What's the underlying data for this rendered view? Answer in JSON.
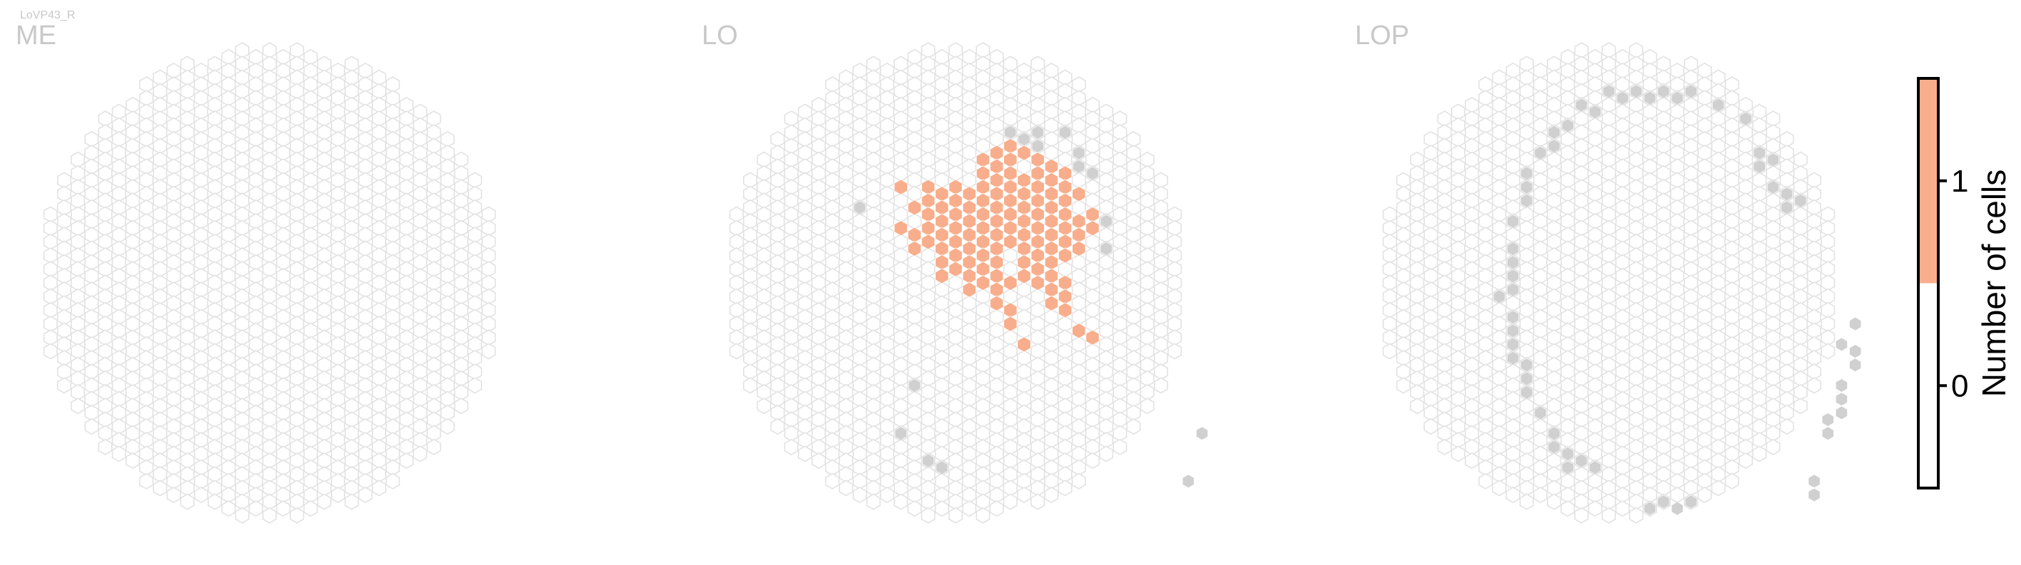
{
  "chart_data": {
    "type": "heatmap",
    "cell_type": "LoVP43_R",
    "panels": [
      {
        "title": "ME",
        "filled": [],
        "outside": []
      },
      {
        "title": "LO",
        "filled": [
          [
            3,
            -10
          ],
          [
            4,
            -10
          ],
          [
            5,
            -10
          ],
          [
            2,
            -9
          ],
          [
            3,
            -9
          ],
          [
            4,
            -9
          ],
          [
            6,
            -9
          ],
          [
            7,
            -9
          ],
          [
            2,
            -8
          ],
          [
            3,
            -8
          ],
          [
            4,
            -8
          ],
          [
            5,
            -8
          ],
          [
            6,
            -8
          ],
          [
            7,
            -8
          ],
          [
            8,
            -8
          ],
          [
            -4,
            -7
          ],
          [
            -2,
            -7
          ],
          [
            -1,
            -7
          ],
          [
            0,
            -7
          ],
          [
            1,
            -7
          ],
          [
            2,
            -7
          ],
          [
            3,
            -7
          ],
          [
            4,
            -7
          ],
          [
            5,
            -7
          ],
          [
            6,
            -7
          ],
          [
            7,
            -7
          ],
          [
            8,
            -7
          ],
          [
            9,
            -7
          ],
          [
            -3,
            -6
          ],
          [
            -2,
            -6
          ],
          [
            -1,
            -6
          ],
          [
            0,
            -6
          ],
          [
            1,
            -6
          ],
          [
            2,
            -6
          ],
          [
            3,
            -6
          ],
          [
            4,
            -6
          ],
          [
            5,
            -6
          ],
          [
            6,
            -6
          ],
          [
            7,
            -6
          ],
          [
            8,
            -6
          ],
          [
            -2,
            -5
          ],
          [
            -1,
            -5
          ],
          [
            0,
            -5
          ],
          [
            1,
            -5
          ],
          [
            2,
            -5
          ],
          [
            3,
            -5
          ],
          [
            4,
            -5
          ],
          [
            5,
            -5
          ],
          [
            6,
            -5
          ],
          [
            7,
            -5
          ],
          [
            8,
            -5
          ],
          [
            9,
            -5
          ],
          [
            10,
            -5
          ],
          [
            -4,
            -4
          ],
          [
            -3,
            -4
          ],
          [
            -2,
            -4
          ],
          [
            -1,
            -4
          ],
          [
            0,
            -4
          ],
          [
            1,
            -4
          ],
          [
            2,
            -4
          ],
          [
            3,
            -4
          ],
          [
            4,
            -4
          ],
          [
            5,
            -4
          ],
          [
            6,
            -4
          ],
          [
            7,
            -4
          ],
          [
            8,
            -4
          ],
          [
            9,
            -4
          ],
          [
            10,
            -4
          ],
          [
            -3,
            -3
          ],
          [
            -2,
            -3
          ],
          [
            -1,
            -3
          ],
          [
            0,
            -3
          ],
          [
            1,
            -3
          ],
          [
            2,
            -3
          ],
          [
            3,
            -3
          ],
          [
            4,
            -3
          ],
          [
            5,
            -3
          ],
          [
            6,
            -3
          ],
          [
            7,
            -3
          ],
          [
            8,
            -3
          ],
          [
            9,
            -3
          ],
          [
            -1,
            -2
          ],
          [
            0,
            -2
          ],
          [
            1,
            -2
          ],
          [
            2,
            -2
          ],
          [
            3,
            -2
          ],
          [
            5,
            -2
          ],
          [
            6,
            -2
          ],
          [
            7,
            -2
          ],
          [
            8,
            -2
          ],
          [
            -1,
            -1
          ],
          [
            0,
            -1
          ],
          [
            1,
            -1
          ],
          [
            2,
            -1
          ],
          [
            3,
            -1
          ],
          [
            5,
            -1
          ],
          [
            6,
            -1
          ],
          [
            7,
            -1
          ],
          [
            1,
            0
          ],
          [
            2,
            0
          ],
          [
            3,
            0
          ],
          [
            4,
            0
          ],
          [
            6,
            0
          ],
          [
            7,
            0
          ],
          [
            8,
            0
          ],
          [
            3,
            1
          ],
          [
            7,
            1
          ],
          [
            8,
            1
          ],
          [
            4,
            2
          ],
          [
            8,
            2
          ],
          [
            4,
            3
          ],
          [
            9,
            3
          ],
          [
            5,
            4
          ],
          [
            10,
            4
          ]
        ],
        "outside": [
          [
            4,
            -11
          ],
          [
            5,
            -11
          ],
          [
            6,
            -11
          ],
          [
            8,
            -11
          ],
          [
            6,
            -10
          ],
          [
            9,
            -10
          ],
          [
            9,
            -9
          ],
          [
            10,
            -8
          ],
          [
            -7,
            -6
          ],
          [
            11,
            -5
          ],
          [
            11,
            -3
          ],
          [
            -3,
            7
          ],
          [
            -4,
            11
          ],
          [
            -2,
            13
          ],
          [
            -1,
            13
          ],
          [
            18,
            11
          ],
          [
            17,
            14
          ]
        ]
      },
      {
        "title": "LOP",
        "filled": [],
        "outside": [
          [
            0,
            -14
          ],
          [
            1,
            -14
          ],
          [
            2,
            -14
          ],
          [
            3,
            -14
          ],
          [
            4,
            -14
          ],
          [
            5,
            -14
          ],
          [
            6,
            -14
          ],
          [
            -1,
            -13
          ],
          [
            -2,
            -13
          ],
          [
            8,
            -13
          ],
          [
            -3,
            -12
          ],
          [
            10,
            -12
          ],
          [
            -4,
            -11
          ],
          [
            -4,
            -10
          ],
          [
            -5,
            -10
          ],
          [
            11,
            -10
          ],
          [
            11,
            -9
          ],
          [
            12,
            -9
          ],
          [
            -6,
            -8
          ],
          [
            -6,
            -7
          ],
          [
            -6,
            -6
          ],
          [
            12,
            -7
          ],
          [
            13,
            -7
          ],
          [
            13,
            -6
          ],
          [
            14,
            -6
          ],
          [
            -7,
            -5
          ],
          [
            -7,
            -3
          ],
          [
            -7,
            -2
          ],
          [
            -7,
            -1
          ],
          [
            -7,
            0
          ],
          [
            -8,
            1
          ],
          [
            -7,
            2
          ],
          [
            -7,
            3
          ],
          [
            18,
            3
          ],
          [
            17,
            4
          ],
          [
            -7,
            4
          ],
          [
            -7,
            5
          ],
          [
            18,
            5
          ],
          [
            18,
            6
          ],
          [
            17,
            7
          ],
          [
            -6,
            6
          ],
          [
            -6,
            7
          ],
          [
            17,
            8
          ],
          [
            17,
            9
          ],
          [
            -6,
            8
          ],
          [
            -5,
            9
          ],
          [
            16,
            10
          ],
          [
            16,
            11
          ],
          [
            -4,
            11
          ],
          [
            -4,
            12
          ],
          [
            -3,
            12
          ],
          [
            -3,
            13
          ],
          [
            -2,
            13
          ],
          [
            -1,
            13
          ],
          [
            15,
            14
          ],
          [
            15,
            15
          ],
          [
            3,
            16
          ],
          [
            4,
            16
          ],
          [
            5,
            16
          ],
          [
            6,
            16
          ]
        ]
      }
    ],
    "colorbar": {
      "label": "Number of cells",
      "ticks": [
        0,
        1
      ],
      "tick_labels": [
        "0",
        "1"
      ],
      "range": [
        -0.5,
        1.5
      ],
      "colors": {
        "0": "#ffffff",
        "1": "#f8ae8c"
      }
    },
    "colors": {
      "empty_outline": "#e2e2e2",
      "filled_fill": "#f8ae8c",
      "outside_fill": "#d0d0d0",
      "title_color": "#c8c8c8"
    }
  }
}
